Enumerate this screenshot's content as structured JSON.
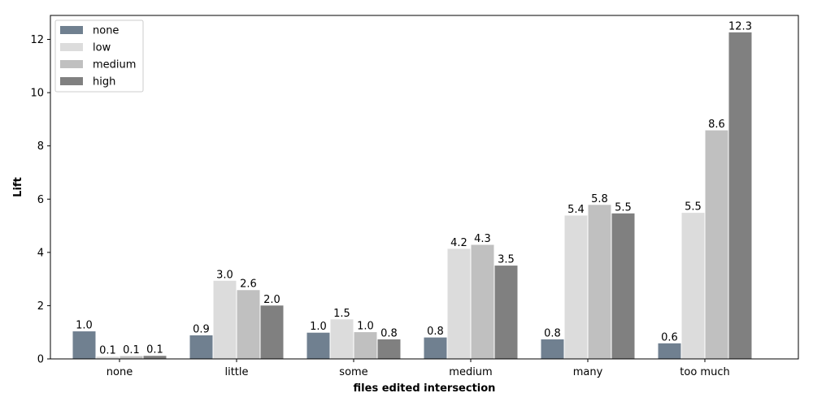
{
  "chart_data": {
    "type": "bar",
    "xlabel": "files edited intersection",
    "ylabel": "Lift",
    "categories": [
      "none",
      "little",
      "some",
      "medium",
      "many",
      "too much"
    ],
    "series": [
      {
        "name": "none",
        "color": "#708090",
        "values": [
          1.05,
          0.9,
          1.0,
          0.82,
          0.75,
          0.6
        ],
        "labels": [
          "1.0",
          "0.9",
          "1.0",
          "0.8",
          "0.8",
          "0.6"
        ]
      },
      {
        "name": "low",
        "color": "#dcdcdc",
        "values": [
          0.1,
          2.95,
          1.5,
          4.15,
          5.4,
          5.5
        ],
        "labels": [
          "0.1",
          "3.0",
          "1.5",
          "4.2",
          "5.4",
          "5.5"
        ]
      },
      {
        "name": "medium",
        "color": "#c0c0c0",
        "values": [
          0.12,
          2.6,
          1.02,
          4.3,
          5.8,
          8.6
        ],
        "labels": [
          "0.1",
          "2.6",
          "1.0",
          "4.3",
          "5.8",
          "8.6"
        ]
      },
      {
        "name": "high",
        "color": "#808080",
        "values": [
          0.13,
          2.02,
          0.75,
          3.52,
          5.48,
          12.28
        ],
        "labels": [
          "0.1",
          "2.0",
          "0.8",
          "3.5",
          "5.5",
          "12.3"
        ]
      }
    ],
    "ylim": [
      0,
      12.9
    ],
    "yticks": [
      0,
      2,
      4,
      6,
      8,
      10,
      12
    ],
    "grid": false,
    "legend_position": "top-left"
  }
}
